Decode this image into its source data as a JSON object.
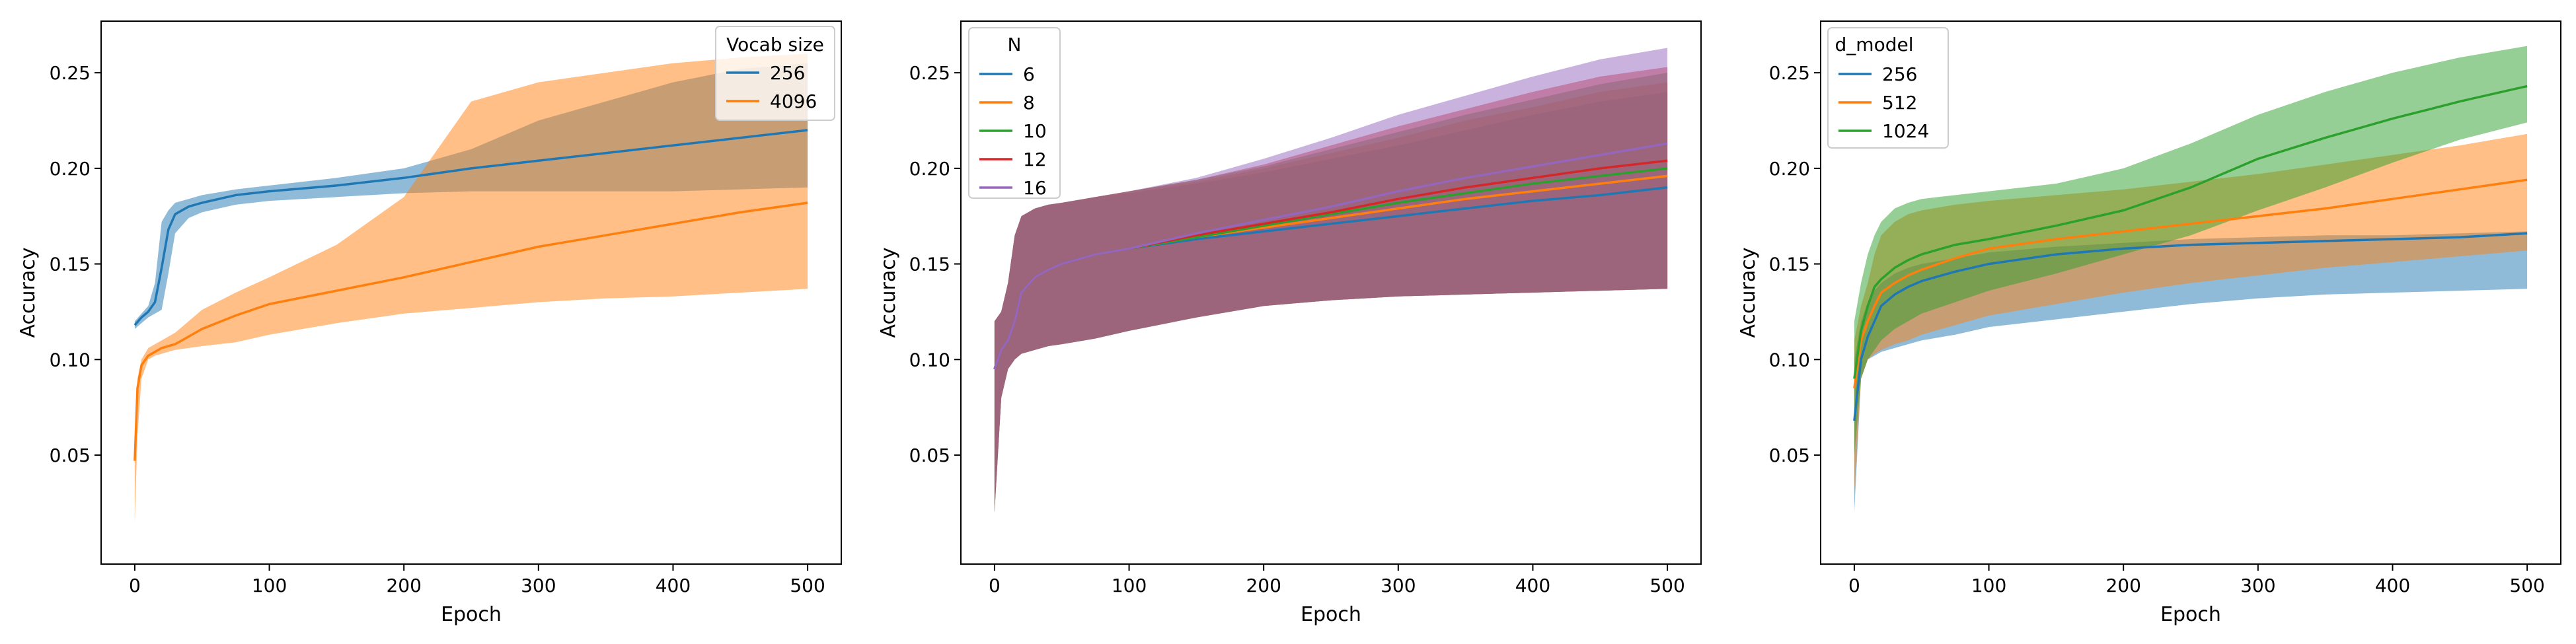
{
  "chart_data": [
    {
      "type": "line",
      "xlabel": "Epoch",
      "ylabel": "Accuracy",
      "xlim": [
        -25,
        525
      ],
      "ylim": [
        -0.007,
        0.277
      ],
      "x_ticks": [
        0,
        100,
        200,
        300,
        400,
        500
      ],
      "y_ticks": [
        0.05,
        0.1,
        0.15,
        0.2,
        0.25
      ],
      "grid": false,
      "legend": {
        "title": "Vocab size",
        "placement": "top-right"
      },
      "series": [
        {
          "name": "256",
          "color": "#1f77b4",
          "x": [
            0,
            5,
            10,
            15,
            20,
            25,
            30,
            40,
            50,
            75,
            100,
            150,
            200,
            250,
            300,
            350,
            400,
            450,
            500
          ],
          "mean": [
            0.118,
            0.122,
            0.125,
            0.13,
            0.148,
            0.168,
            0.176,
            0.18,
            0.182,
            0.186,
            0.188,
            0.191,
            0.195,
            0.2,
            0.204,
            0.208,
            0.212,
            0.216,
            0.22
          ],
          "upper": [
            0.12,
            0.124,
            0.128,
            0.14,
            0.172,
            0.178,
            0.182,
            0.184,
            0.186,
            0.189,
            0.191,
            0.195,
            0.2,
            0.21,
            0.225,
            0.235,
            0.245,
            0.252,
            0.255
          ],
          "lower": [
            0.116,
            0.119,
            0.122,
            0.124,
            0.126,
            0.145,
            0.166,
            0.174,
            0.177,
            0.181,
            0.183,
            0.185,
            0.187,
            0.188,
            0.188,
            0.188,
            0.188,
            0.189,
            0.19
          ]
        },
        {
          "name": "4096",
          "color": "#ff7f0e",
          "x": [
            0,
            2,
            5,
            10,
            15,
            20,
            30,
            40,
            50,
            75,
            100,
            150,
            200,
            250,
            300,
            350,
            400,
            450,
            500
          ],
          "mean": [
            0.047,
            0.085,
            0.097,
            0.102,
            0.104,
            0.106,
            0.108,
            0.112,
            0.116,
            0.123,
            0.129,
            0.136,
            0.143,
            0.151,
            0.159,
            0.165,
            0.171,
            0.177,
            0.182
          ],
          "upper": [
            0.05,
            0.09,
            0.1,
            0.106,
            0.108,
            0.11,
            0.114,
            0.12,
            0.126,
            0.135,
            0.143,
            0.16,
            0.185,
            0.235,
            0.245,
            0.25,
            0.255,
            0.258,
            0.26
          ],
          "lower": [
            0.015,
            0.06,
            0.09,
            0.1,
            0.102,
            0.103,
            0.105,
            0.106,
            0.107,
            0.109,
            0.113,
            0.119,
            0.124,
            0.127,
            0.13,
            0.132,
            0.133,
            0.135,
            0.137
          ]
        }
      ]
    },
    {
      "type": "line",
      "xlabel": "Epoch",
      "ylabel": "Accuracy",
      "xlim": [
        -25,
        525
      ],
      "ylim": [
        -0.007,
        0.277
      ],
      "x_ticks": [
        0,
        100,
        200,
        300,
        400,
        500
      ],
      "y_ticks": [
        0.05,
        0.1,
        0.15,
        0.2,
        0.25
      ],
      "grid": false,
      "legend": {
        "title": "N",
        "placement": "top-left"
      },
      "series": [
        {
          "name": "6",
          "color": "#1f77b4",
          "x": [
            0,
            5,
            10,
            15,
            20,
            30,
            40,
            50,
            75,
            100,
            150,
            200,
            250,
            300,
            350,
            400,
            450,
            500
          ],
          "mean": [
            0.095,
            0.105,
            0.11,
            0.12,
            0.135,
            0.143,
            0.147,
            0.15,
            0.155,
            0.158,
            0.163,
            0.167,
            0.171,
            0.175,
            0.179,
            0.183,
            0.186,
            0.19
          ],
          "upper": [
            0.12,
            0.125,
            0.14,
            0.165,
            0.175,
            0.179,
            0.181,
            0.182,
            0.185,
            0.187,
            0.192,
            0.198,
            0.205,
            0.212,
            0.22,
            0.228,
            0.235,
            0.24
          ],
          "lower": [
            0.02,
            0.08,
            0.095,
            0.1,
            0.103,
            0.105,
            0.107,
            0.108,
            0.111,
            0.115,
            0.122,
            0.128,
            0.131,
            0.133,
            0.134,
            0.135,
            0.136,
            0.137
          ]
        },
        {
          "name": "8",
          "color": "#ff7f0e",
          "x": [
            0,
            5,
            10,
            15,
            20,
            30,
            40,
            50,
            75,
            100,
            150,
            200,
            250,
            300,
            350,
            400,
            450,
            500
          ],
          "mean": [
            0.095,
            0.105,
            0.11,
            0.12,
            0.135,
            0.143,
            0.147,
            0.15,
            0.155,
            0.158,
            0.164,
            0.169,
            0.174,
            0.179,
            0.184,
            0.188,
            0.192,
            0.196
          ],
          "upper": [
            0.12,
            0.125,
            0.14,
            0.165,
            0.175,
            0.179,
            0.181,
            0.182,
            0.185,
            0.188,
            0.193,
            0.2,
            0.208,
            0.216,
            0.225,
            0.232,
            0.24,
            0.245
          ],
          "lower": [
            0.02,
            0.08,
            0.095,
            0.1,
            0.103,
            0.105,
            0.107,
            0.108,
            0.111,
            0.115,
            0.122,
            0.128,
            0.131,
            0.133,
            0.134,
            0.135,
            0.136,
            0.137
          ]
        },
        {
          "name": "10",
          "color": "#2ca02c",
          "x": [
            0,
            5,
            10,
            15,
            20,
            30,
            40,
            50,
            75,
            100,
            150,
            200,
            250,
            300,
            350,
            400,
            450,
            500
          ],
          "mean": [
            0.095,
            0.105,
            0.11,
            0.12,
            0.135,
            0.143,
            0.147,
            0.15,
            0.155,
            0.158,
            0.164,
            0.17,
            0.176,
            0.182,
            0.187,
            0.192,
            0.196,
            0.2
          ],
          "upper": [
            0.12,
            0.125,
            0.14,
            0.165,
            0.175,
            0.179,
            0.181,
            0.182,
            0.185,
            0.188,
            0.194,
            0.201,
            0.21,
            0.219,
            0.228,
            0.236,
            0.244,
            0.25
          ],
          "lower": [
            0.02,
            0.08,
            0.095,
            0.1,
            0.103,
            0.105,
            0.107,
            0.108,
            0.111,
            0.115,
            0.122,
            0.128,
            0.131,
            0.133,
            0.134,
            0.135,
            0.136,
            0.137
          ]
        },
        {
          "name": "12",
          "color": "#d62728",
          "x": [
            0,
            5,
            10,
            15,
            20,
            30,
            40,
            50,
            75,
            100,
            150,
            200,
            250,
            300,
            350,
            400,
            450,
            500
          ],
          "mean": [
            0.095,
            0.105,
            0.11,
            0.12,
            0.135,
            0.143,
            0.147,
            0.15,
            0.155,
            0.158,
            0.165,
            0.171,
            0.177,
            0.184,
            0.19,
            0.195,
            0.2,
            0.204
          ],
          "upper": [
            0.12,
            0.125,
            0.14,
            0.165,
            0.175,
            0.179,
            0.181,
            0.182,
            0.185,
            0.188,
            0.194,
            0.202,
            0.212,
            0.222,
            0.231,
            0.24,
            0.248,
            0.253
          ],
          "lower": [
            0.02,
            0.08,
            0.095,
            0.1,
            0.103,
            0.105,
            0.107,
            0.108,
            0.111,
            0.115,
            0.122,
            0.128,
            0.131,
            0.133,
            0.134,
            0.135,
            0.136,
            0.137
          ]
        },
        {
          "name": "16",
          "color": "#9467bd",
          "x": [
            0,
            5,
            10,
            15,
            20,
            30,
            40,
            50,
            75,
            100,
            150,
            200,
            250,
            300,
            350,
            400,
            450,
            500
          ],
          "mean": [
            0.095,
            0.105,
            0.11,
            0.12,
            0.135,
            0.143,
            0.147,
            0.15,
            0.155,
            0.158,
            0.166,
            0.173,
            0.18,
            0.188,
            0.195,
            0.201,
            0.207,
            0.213
          ],
          "upper": [
            0.12,
            0.125,
            0.14,
            0.165,
            0.175,
            0.179,
            0.181,
            0.182,
            0.185,
            0.188,
            0.195,
            0.205,
            0.216,
            0.228,
            0.238,
            0.248,
            0.257,
            0.263
          ],
          "lower": [
            0.02,
            0.08,
            0.095,
            0.1,
            0.103,
            0.105,
            0.107,
            0.108,
            0.111,
            0.115,
            0.122,
            0.128,
            0.131,
            0.133,
            0.134,
            0.135,
            0.136,
            0.137
          ]
        }
      ]
    },
    {
      "type": "line",
      "xlabel": "Epoch",
      "ylabel": "Accuracy",
      "xlim": [
        -25,
        525
      ],
      "ylim": [
        -0.007,
        0.277
      ],
      "x_ticks": [
        0,
        100,
        200,
        300,
        400,
        500
      ],
      "y_ticks": [
        0.05,
        0.1,
        0.15,
        0.2,
        0.25
      ],
      "grid": false,
      "legend": {
        "title": "d_model",
        "placement": "top-left"
      },
      "series": [
        {
          "name": "256",
          "color": "#1f77b4",
          "x": [
            0,
            5,
            10,
            15,
            20,
            30,
            40,
            50,
            75,
            100,
            150,
            200,
            250,
            300,
            350,
            400,
            450,
            500
          ],
          "mean": [
            0.068,
            0.1,
            0.112,
            0.12,
            0.128,
            0.134,
            0.138,
            0.141,
            0.146,
            0.15,
            0.155,
            0.158,
            0.16,
            0.161,
            0.162,
            0.163,
            0.164,
            0.166
          ],
          "upper": [
            0.1,
            0.12,
            0.13,
            0.136,
            0.14,
            0.145,
            0.148,
            0.15,
            0.153,
            0.156,
            0.159,
            0.161,
            0.163,
            0.164,
            0.165,
            0.165,
            0.166,
            0.167
          ],
          "lower": [
            0.02,
            0.09,
            0.1,
            0.102,
            0.104,
            0.106,
            0.108,
            0.11,
            0.113,
            0.117,
            0.121,
            0.125,
            0.129,
            0.132,
            0.134,
            0.135,
            0.136,
            0.137
          ]
        },
        {
          "name": "512",
          "color": "#ff7f0e",
          "x": [
            0,
            5,
            10,
            15,
            20,
            30,
            40,
            50,
            75,
            100,
            150,
            200,
            250,
            300,
            350,
            400,
            450,
            500
          ],
          "mean": [
            0.085,
            0.11,
            0.12,
            0.128,
            0.135,
            0.14,
            0.144,
            0.147,
            0.153,
            0.158,
            0.163,
            0.167,
            0.171,
            0.175,
            0.179,
            0.184,
            0.189,
            0.194
          ],
          "upper": [
            0.11,
            0.128,
            0.14,
            0.155,
            0.165,
            0.172,
            0.176,
            0.178,
            0.181,
            0.183,
            0.186,
            0.189,
            0.193,
            0.197,
            0.202,
            0.207,
            0.212,
            0.218
          ],
          "lower": [
            0.03,
            0.09,
            0.1,
            0.103,
            0.105,
            0.108,
            0.11,
            0.113,
            0.118,
            0.123,
            0.129,
            0.135,
            0.14,
            0.144,
            0.148,
            0.151,
            0.154,
            0.157
          ]
        },
        {
          "name": "1024",
          "color": "#2ca02c",
          "x": [
            0,
            5,
            10,
            15,
            20,
            30,
            40,
            50,
            75,
            100,
            150,
            200,
            250,
            300,
            350,
            400,
            450,
            500
          ],
          "mean": [
            0.09,
            0.115,
            0.128,
            0.138,
            0.142,
            0.148,
            0.152,
            0.155,
            0.16,
            0.163,
            0.17,
            0.178,
            0.19,
            0.205,
            0.216,
            0.226,
            0.235,
            0.243
          ],
          "upper": [
            0.12,
            0.14,
            0.155,
            0.165,
            0.172,
            0.179,
            0.182,
            0.184,
            0.186,
            0.188,
            0.192,
            0.2,
            0.213,
            0.228,
            0.24,
            0.25,
            0.258,
            0.264
          ],
          "lower": [
            0.05,
            0.09,
            0.1,
            0.105,
            0.11,
            0.116,
            0.12,
            0.124,
            0.13,
            0.136,
            0.145,
            0.155,
            0.165,
            0.178,
            0.19,
            0.203,
            0.215,
            0.224
          ]
        }
      ]
    }
  ]
}
